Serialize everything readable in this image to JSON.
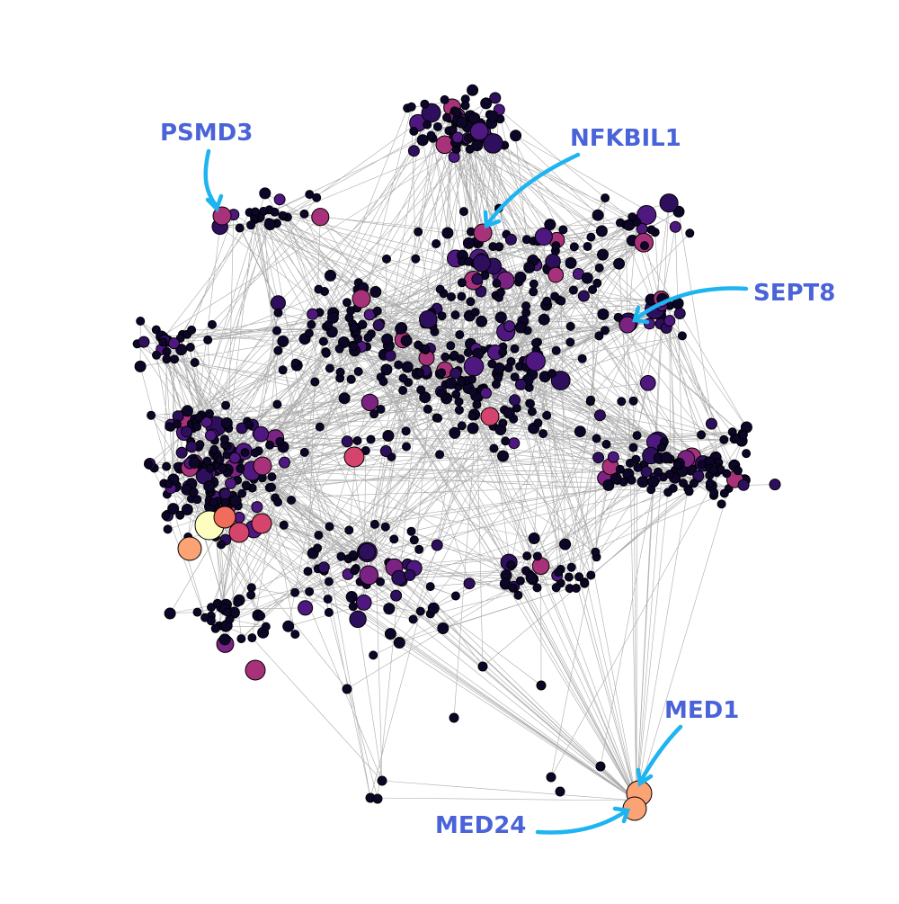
{
  "network": {
    "label_color": "#4a63d8",
    "arrow_color": "#1eb4f0",
    "edge_color": "#444444",
    "node_palette": [
      "#0d0629",
      "#2e0f5e",
      "#4e1880",
      "#7b2382",
      "#a8327a",
      "#d5446d",
      "#f06d5c",
      "#fba374",
      "#fcfdbf"
    ]
  },
  "labels": {
    "psmd3": "PSMD3",
    "nfkbil1": "NFKBIL1",
    "sept8": "SEPT8",
    "med1": "MED1",
    "med24": "MED24"
  }
}
